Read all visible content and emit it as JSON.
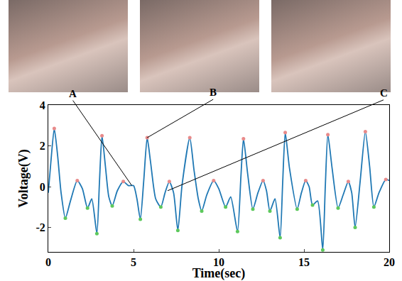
{
  "chart_data": {
    "type": "line",
    "x_label": "Time(sec)",
    "y_label": "Voltage(V)",
    "xlim": [
      0,
      20
    ],
    "xticks": [
      0,
      5,
      10,
      15,
      20
    ],
    "ylim": [
      -3.2,
      4
    ],
    "yticks": [
      -2,
      0,
      2,
      4
    ],
    "grid": false,
    "series": [
      {
        "type": "line",
        "color": "#1f78b4",
        "line_style": "solid",
        "x": [
          0.0,
          0.15,
          0.35,
          0.55,
          0.75,
          1.0,
          1.3,
          1.7,
          2.0,
          2.3,
          2.55,
          2.85,
          3.0,
          3.15,
          3.35,
          3.55,
          3.75,
          4.05,
          4.4,
          4.7,
          5.0,
          5.2,
          5.4,
          5.6,
          5.8,
          6.0,
          6.3,
          6.6,
          6.85,
          7.1,
          7.35,
          7.6,
          7.85,
          8.3,
          8.55,
          8.8,
          9.0,
          9.3,
          9.7,
          10.0,
          10.4,
          10.7,
          11.1,
          11.3,
          11.45,
          11.7,
          12.0,
          12.3,
          12.6,
          12.8,
          13.0,
          13.3,
          13.6,
          13.75,
          13.9,
          14.15,
          14.6,
          14.85,
          15.1,
          15.3,
          15.5,
          15.8,
          16.1,
          16.25,
          16.4,
          16.65,
          17.0,
          17.3,
          17.6,
          17.8,
          18.0,
          18.3,
          18.6,
          18.85,
          19.1,
          19.4,
          19.8,
          20.0
        ],
        "values": [
          -0.3,
          1.2,
          2.85,
          1.5,
          -0.3,
          -1.55,
          -0.7,
          0.3,
          -0.1,
          -1.05,
          -0.6,
          -2.3,
          0.2,
          2.5,
          1.0,
          -0.5,
          -0.95,
          -0.2,
          0.25,
          0.05,
          0.05,
          -0.6,
          -1.6,
          0.3,
          2.4,
          1.2,
          -0.6,
          -1.0,
          -0.3,
          0.25,
          -0.3,
          -2.15,
          0.1,
          2.4,
          0.8,
          -0.6,
          -1.2,
          -0.4,
          0.3,
          -0.1,
          -1.0,
          -0.5,
          -2.2,
          0.5,
          2.35,
          0.6,
          -1.1,
          -0.3,
          0.3,
          -0.2,
          -1.2,
          -0.6,
          -2.5,
          0.2,
          2.65,
          0.9,
          -1.1,
          -0.3,
          0.3,
          0.0,
          -0.9,
          -0.7,
          -3.1,
          0.0,
          2.55,
          0.9,
          -1.05,
          -0.4,
          0.25,
          -0.3,
          -2.0,
          0.3,
          2.7,
          1.0,
          -1.0,
          -0.3,
          0.35,
          0.3
        ]
      },
      {
        "type": "scatter",
        "marker": "circle",
        "color": "#e88a8a",
        "x": [
          0.35,
          1.7,
          3.15,
          4.4,
          5.8,
          7.1,
          8.3,
          9.7,
          11.45,
          12.6,
          13.9,
          15.1,
          16.4,
          17.6,
          18.6,
          19.8
        ],
        "values": [
          2.85,
          0.3,
          2.5,
          0.25,
          2.4,
          0.25,
          2.4,
          0.3,
          2.35,
          0.3,
          2.65,
          0.3,
          2.55,
          0.25,
          2.7,
          0.35
        ]
      },
      {
        "type": "scatter",
        "marker": "circle",
        "color": "#5cc85c",
        "x": [
          1.0,
          2.3,
          2.85,
          3.75,
          5.4,
          6.6,
          7.6,
          9.0,
          10.4,
          11.1,
          12.0,
          13.0,
          13.6,
          14.6,
          15.5,
          16.1,
          17.0,
          18.0,
          19.1
        ],
        "values": [
          -1.55,
          -1.05,
          -2.3,
          -0.95,
          -1.6,
          -1.0,
          -2.15,
          -1.2,
          -1.0,
          -2.2,
          -1.1,
          -1.2,
          -2.5,
          -1.1,
          -0.9,
          -3.1,
          -1.05,
          -2.0,
          -1.0
        ]
      }
    ],
    "annotations": [
      {
        "text": "A",
        "x": 4.9,
        "y": 0.05
      },
      {
        "text": "B",
        "x": 5.8,
        "y": 2.4
      },
      {
        "text": "C",
        "x": 7.0,
        "y": -0.2
      }
    ]
  }
}
